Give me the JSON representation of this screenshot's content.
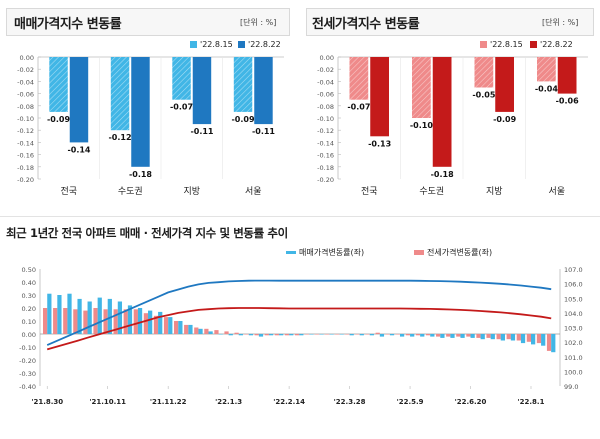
{
  "panels": {
    "sale": {
      "title": "매매가격지수 변동률",
      "unit": "[단위 : %]",
      "legend": [
        "'22.8.15",
        "'22.8.22"
      ],
      "colors": {
        "a": "#41b6e6",
        "b": "#1f78c1"
      }
    },
    "jeonse": {
      "title": "전세가격지수 변동률",
      "unit": "[단위 : %]",
      "legend": [
        "'22.8.15",
        "'22.8.22"
      ],
      "colors": {
        "a": "#ef8a8a",
        "b": "#c41a1a"
      }
    },
    "trend": {
      "title": "최근 1년간 전국 아파트 매매 · 전세가격 지수 및 변동률 추이",
      "legend": [
        "매매가격변동률(좌)",
        "전세가격변동률(좌)"
      ],
      "colors": {
        "sale_bar": "#41b6e6",
        "jeonse_bar": "#ef8a8a",
        "sale_line": "#1f78c1",
        "jeonse_line": "#c41a1a"
      }
    }
  },
  "chart_data": [
    {
      "type": "bar",
      "title": "매매가격지수 변동률",
      "categories": [
        "전국",
        "수도권",
        "지방",
        "서울"
      ],
      "series": [
        {
          "name": "'22.8.15",
          "values": [
            -0.09,
            -0.12,
            -0.07,
            -0.09
          ]
        },
        {
          "name": "'22.8.22",
          "values": [
            -0.14,
            -0.18,
            -0.11,
            -0.11
          ]
        }
      ],
      "ylim": [
        -0.2,
        0.0
      ],
      "yticks": [
        "0.00",
        "-0.02",
        "-0.04",
        "-0.06",
        "-0.08",
        "-0.10",
        "-0.12",
        "-0.14",
        "-0.16",
        "-0.18",
        "-0.20"
      ],
      "legend_position": "top-right"
    },
    {
      "type": "bar",
      "title": "전세가격지수 변동률",
      "categories": [
        "전국",
        "수도권",
        "지방",
        "서울"
      ],
      "series": [
        {
          "name": "'22.8.15",
          "values": [
            -0.07,
            -0.1,
            -0.05,
            -0.04
          ]
        },
        {
          "name": "'22.8.22",
          "values": [
            -0.13,
            -0.18,
            -0.09,
            -0.06
          ]
        }
      ],
      "ylim": [
        -0.2,
        0.0
      ],
      "yticks": [
        "0.00",
        "-0.02",
        "-0.04",
        "-0.06",
        "-0.08",
        "-0.10",
        "-0.12",
        "-0.14",
        "-0.16",
        "-0.18",
        "-0.20"
      ],
      "legend_position": "top-right"
    },
    {
      "type": "bar",
      "title": "최근 1년간 전국 아파트 매매 · 전세가격 지수 및 변동률 추이",
      "x_ticks": [
        "'21.8.30",
        "'21.10.11",
        "'21.11.22",
        "'22.1.3",
        "'22.2.14",
        "'22.3.28",
        "'22.5.9",
        "'22.6.20",
        "'22.8.1"
      ],
      "ylim_left": [
        -0.4,
        0.5
      ],
      "yticks_left": [
        "0.50",
        "0.40",
        "0.30",
        "0.20",
        "0.10",
        "0.00",
        "-0.10",
        "-0.20",
        "-0.30",
        "-0.40"
      ],
      "ylim_right": [
        99.0,
        107.0
      ],
      "yticks_right": [
        "107.0",
        "106.0",
        "105.0",
        "104.0",
        "103.0",
        "102.0",
        "101.0",
        "100.0",
        "99.0"
      ],
      "series": [
        {
          "name": "매매가격변동률(좌)",
          "kind": "bar",
          "values": [
            0.31,
            0.3,
            0.31,
            0.27,
            0.25,
            0.28,
            0.27,
            0.25,
            0.22,
            0.2,
            0.18,
            0.17,
            0.13,
            0.1,
            0.07,
            0.04,
            0.02,
            0.0,
            -0.01,
            -0.01,
            -0.01,
            -0.02,
            -0.01,
            -0.01,
            -0.01,
            -0.01,
            0.0,
            0.0,
            0.0,
            0.0,
            -0.01,
            -0.01,
            -0.01,
            -0.02,
            -0.01,
            -0.02,
            -0.02,
            -0.02,
            -0.02,
            -0.03,
            -0.03,
            -0.03,
            -0.03,
            -0.04,
            -0.04,
            -0.05,
            -0.05,
            -0.07,
            -0.08,
            -0.09,
            -0.14
          ]
        },
        {
          "name": "전세가격변동률(좌)",
          "kind": "bar",
          "values": [
            0.2,
            0.2,
            0.2,
            0.19,
            0.18,
            0.2,
            0.19,
            0.19,
            0.19,
            0.19,
            0.16,
            0.14,
            0.13,
            0.1,
            0.07,
            0.05,
            0.04,
            0.03,
            0.02,
            0.01,
            0.0,
            -0.01,
            -0.01,
            -0.01,
            -0.01,
            -0.01,
            0.0,
            0.0,
            0.0,
            0.0,
            0.0,
            0.0,
            0.0,
            0.01,
            0.0,
            0.0,
            -0.01,
            -0.01,
            -0.01,
            -0.02,
            -0.02,
            -0.02,
            -0.02,
            -0.03,
            -0.03,
            -0.04,
            -0.04,
            -0.05,
            -0.06,
            -0.07,
            -0.13
          ]
        },
        {
          "kind": "line",
          "axis": "right",
          "values": [
            101.8,
            102.1,
            102.4,
            102.7,
            103.0,
            103.3,
            103.6,
            103.9,
            104.2,
            104.5,
            104.8,
            105.1,
            105.4,
            105.6,
            105.8,
            105.95,
            106.05,
            106.1,
            106.15,
            106.18,
            106.2,
            106.21,
            106.21,
            106.2,
            106.2,
            106.2,
            106.2,
            106.2,
            106.2,
            106.2,
            106.2,
            106.2,
            106.2,
            106.2,
            106.2,
            106.2,
            106.2,
            106.19,
            106.18,
            106.17,
            106.15,
            106.13,
            106.1,
            106.07,
            106.03,
            105.99,
            105.93,
            105.87,
            105.8,
            105.72,
            105.62
          ]
        },
        {
          "kind": "line",
          "axis": "right",
          "values": [
            101.5,
            101.7,
            101.9,
            102.1,
            102.3,
            102.5,
            102.7,
            102.9,
            103.1,
            103.3,
            103.5,
            103.7,
            103.85,
            104.0,
            104.1,
            104.2,
            104.25,
            104.3,
            104.32,
            104.33,
            104.33,
            104.33,
            104.32,
            104.31,
            104.3,
            104.3,
            104.3,
            104.3,
            104.3,
            104.3,
            104.3,
            104.3,
            104.3,
            104.3,
            104.3,
            104.3,
            104.29,
            104.28,
            104.27,
            104.25,
            104.23,
            104.2,
            104.17,
            104.13,
            104.08,
            104.03,
            103.97,
            103.9,
            103.82,
            103.74,
            103.62
          ]
        }
      ],
      "legend_position": "top"
    }
  ]
}
